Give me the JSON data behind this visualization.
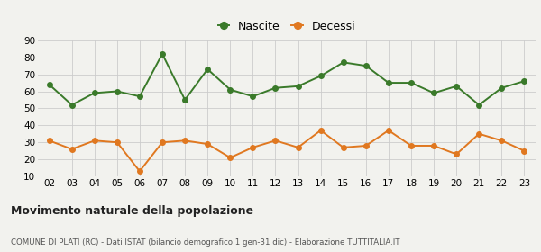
{
  "years": [
    "02",
    "03",
    "04",
    "05",
    "06",
    "07",
    "08",
    "09",
    "10",
    "11",
    "12",
    "13",
    "14",
    "15",
    "16",
    "17",
    "18",
    "19",
    "20",
    "21",
    "22",
    "23"
  ],
  "nascite": [
    64,
    52,
    59,
    60,
    57,
    82,
    55,
    73,
    61,
    57,
    62,
    63,
    69,
    77,
    75,
    65,
    65,
    59,
    63,
    52,
    62,
    66
  ],
  "decessi": [
    31,
    26,
    31,
    30,
    13,
    30,
    31,
    29,
    21,
    27,
    31,
    27,
    37,
    27,
    28,
    37,
    28,
    28,
    23,
    35,
    31,
    25
  ],
  "nascite_color": "#3a7a2a",
  "decessi_color": "#e07820",
  "bg_color": "#f2f2ee",
  "grid_color": "#cccccc",
  "title": "Movimento naturale della popolazione",
  "subtitle": "COMUNE DI PLATÌ (RC) - Dati ISTAT (bilancio demografico 1 gen-31 dic) - Elaborazione TUTTITALIA.IT",
  "ylim": [
    10,
    90
  ],
  "yticks": [
    10,
    20,
    30,
    40,
    50,
    60,
    70,
    80,
    90
  ],
  "legend_nascite": "Nascite",
  "legend_decessi": "Decessi",
  "marker_size": 4,
  "linewidth": 1.4
}
